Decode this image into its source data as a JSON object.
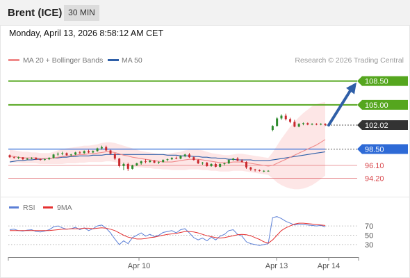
{
  "header": {
    "title": "Brent (ICE)",
    "timeframe": "30 MIN",
    "datetime": "Monday, April 13, 2026 8:58:12 AM CET"
  },
  "legend": {
    "ma20_label": "MA 20 + Bollinger Bands",
    "ma50_label": "MA 50",
    "credit": "Research © 2026 Trading Central",
    "rsi_label": "RSI",
    "rsi_ma_label": "9MA"
  },
  "colors": {
    "ma20": "#f08a8a",
    "ma50": "#2e5fa8",
    "resistance": "#55a61e",
    "pivot": "#2e6ad6",
    "support": "#d8454a",
    "current": "#333333",
    "rsi": "#5b7fd6",
    "rsi_ma": "#e53030",
    "bollinger_fill": "#fde2e2",
    "arrow": "#2f5fa8"
  },
  "price_levels": [
    {
      "value": "108.50",
      "kind": "resistance"
    },
    {
      "value": "105.00",
      "kind": "resistance"
    },
    {
      "value": "102.02",
      "kind": "current"
    },
    {
      "value": "98.50",
      "kind": "pivot"
    },
    {
      "value": "96.10",
      "kind": "support"
    },
    {
      "value": "94.20",
      "kind": "support"
    }
  ],
  "rsi_levels": [
    "70",
    "50",
    "30"
  ],
  "x_axis": [
    "Apr 10",
    "Apr 13",
    "Apr 14"
  ],
  "chart_data": {
    "type": "candlestick",
    "instrument": "Brent (ICE)",
    "interval": "30 MIN",
    "ylim": [
      91.5,
      110.5
    ],
    "candles": [
      [
        97.6,
        97.7,
        97.2,
        97.3
      ],
      [
        97.3,
        97.4,
        97.1,
        97.2
      ],
      [
        97.2,
        97.4,
        97.0,
        97.3
      ],
      [
        97.3,
        97.3,
        96.9,
        97.0
      ],
      [
        97.0,
        97.2,
        96.9,
        97.1
      ],
      [
        97.1,
        97.3,
        97.0,
        97.2
      ],
      [
        97.2,
        97.3,
        96.9,
        97.0
      ],
      [
        97.0,
        97.1,
        96.8,
        96.9
      ],
      [
        96.9,
        97.1,
        96.8,
        97.0
      ],
      [
        97.0,
        97.3,
        96.9,
        97.2
      ],
      [
        97.2,
        97.8,
        97.1,
        97.7
      ],
      [
        97.7,
        98.0,
        97.5,
        97.8
      ],
      [
        97.8,
        98.1,
        97.6,
        97.9
      ],
      [
        97.9,
        98.0,
        97.5,
        97.6
      ],
      [
        97.6,
        97.8,
        97.4,
        97.7
      ],
      [
        97.7,
        98.1,
        97.6,
        98.0
      ],
      [
        98.0,
        98.2,
        97.8,
        97.9
      ],
      [
        97.9,
        98.3,
        97.8,
        98.2
      ],
      [
        98.2,
        98.4,
        97.9,
        98.0
      ],
      [
        98.0,
        98.3,
        97.9,
        98.2
      ],
      [
        98.2,
        98.7,
        98.1,
        98.6
      ],
      [
        98.6,
        99.0,
        98.4,
        98.8
      ],
      [
        98.8,
        99.0,
        98.2,
        98.3
      ],
      [
        98.3,
        98.4,
        97.7,
        97.8
      ],
      [
        97.8,
        97.9,
        96.9,
        97.1
      ],
      [
        97.1,
        97.2,
        95.8,
        96.0
      ],
      [
        96.0,
        96.5,
        95.4,
        96.3
      ],
      [
        96.3,
        96.5,
        95.3,
        95.6
      ],
      [
        95.6,
        96.2,
        95.5,
        96.1
      ],
      [
        96.1,
        96.5,
        96.0,
        96.4
      ],
      [
        96.4,
        96.8,
        96.2,
        96.7
      ],
      [
        96.7,
        97.0,
        96.4,
        96.6
      ],
      [
        96.6,
        96.9,
        96.5,
        96.8
      ],
      [
        96.8,
        96.9,
        96.4,
        96.5
      ],
      [
        96.5,
        96.7,
        96.3,
        96.6
      ],
      [
        96.6,
        97.0,
        96.5,
        96.9
      ],
      [
        96.9,
        97.1,
        96.7,
        97.0
      ],
      [
        97.0,
        97.3,
        96.9,
        97.2
      ],
      [
        97.2,
        97.4,
        97.0,
        97.1
      ],
      [
        97.1,
        97.6,
        97.0,
        97.5
      ],
      [
        97.5,
        97.8,
        97.3,
        97.7
      ],
      [
        97.7,
        97.9,
        97.2,
        97.3
      ],
      [
        97.3,
        97.4,
        96.8,
        96.9
      ],
      [
        96.9,
        97.0,
        96.3,
        96.4
      ],
      [
        96.4,
        96.6,
        96.2,
        96.5
      ],
      [
        96.5,
        96.6,
        95.9,
        96.0
      ],
      [
        96.0,
        96.4,
        95.9,
        96.3
      ],
      [
        96.3,
        96.5,
        95.8,
        95.9
      ],
      [
        95.9,
        96.4,
        95.8,
        96.3
      ],
      [
        96.3,
        96.5,
        96.1,
        96.4
      ],
      [
        96.4,
        97.0,
        96.3,
        96.9
      ],
      [
        96.9,
        97.2,
        96.8,
        97.1
      ],
      [
        97.1,
        97.3,
        96.7,
        96.8
      ],
      [
        96.8,
        97.0,
        96.5,
        96.6
      ],
      [
        96.6,
        96.7,
        95.6,
        95.8
      ],
      [
        95.8,
        95.9,
        95.3,
        95.5
      ],
      [
        95.5,
        95.6,
        95.2,
        95.4
      ],
      [
        95.4,
        95.5,
        95.2,
        95.3
      ],
      [
        95.3,
        95.4,
        95.1,
        95.3
      ],
      [
        95.3,
        95.4,
        95.2,
        95.3
      ],
      [
        101.3,
        102.0,
        101.1,
        101.9
      ],
      [
        101.9,
        103.2,
        101.8,
        103.0
      ],
      [
        103.0,
        103.6,
        102.8,
        103.4
      ],
      [
        103.4,
        103.7,
        102.7,
        102.9
      ],
      [
        102.9,
        103.1,
        102.3,
        102.5
      ],
      [
        102.5,
        102.8,
        101.7,
        101.8
      ],
      [
        101.8,
        102.3,
        101.7,
        102.2
      ],
      [
        102.2,
        102.4,
        102.0,
        102.3
      ],
      [
        102.3,
        102.4,
        102.0,
        102.1
      ],
      [
        102.1,
        102.3,
        102.0,
        102.2
      ],
      [
        102.2,
        102.3,
        102.0,
        102.1
      ],
      [
        102.1,
        102.3,
        102.0,
        102.2
      ],
      [
        102.2,
        102.3,
        101.9,
        102.02
      ]
    ],
    "ma20": [
      97.5,
      97.4,
      97.3,
      97.2,
      97.2,
      97.2,
      97.2,
      97.1,
      97.1,
      97.1,
      97.2,
      97.3,
      97.4,
      97.5,
      97.5,
      97.6,
      97.7,
      97.7,
      97.8,
      97.8,
      97.9,
      98.0,
      98.1,
      98.1,
      98.0,
      97.8,
      97.6,
      97.5,
      97.3,
      97.2,
      97.1,
      97.0,
      96.9,
      96.8,
      96.7,
      96.6,
      96.6,
      96.6,
      96.7,
      96.8,
      96.9,
      97.0,
      97.0,
      97.0,
      96.9,
      96.8,
      96.7,
      96.6,
      96.5,
      96.5,
      96.5,
      96.6,
      96.6,
      96.6,
      96.5,
      96.4,
      96.3,
      96.2,
      96.1,
      96.0,
      96.1,
      96.4,
      96.7,
      97.0,
      97.3,
      97.6,
      97.9,
      98.2,
      98.5,
      98.8,
      99.1,
      99.5,
      99.9
    ],
    "ma50": [
      96.6,
      96.7,
      96.8,
      96.8,
      96.9,
      96.9,
      97.0,
      97.0,
      97.1,
      97.1,
      97.2,
      97.2,
      97.3,
      97.3,
      97.4,
      97.4,
      97.5,
      97.5,
      97.5,
      97.6,
      97.6,
      97.6,
      97.7,
      97.7,
      97.7,
      97.7,
      97.7,
      97.7,
      97.7,
      97.7,
      97.7,
      97.7,
      97.7,
      97.7,
      97.7,
      97.7,
      97.6,
      97.6,
      97.6,
      97.5,
      97.5,
      97.5,
      97.4,
      97.4,
      97.3,
      97.3,
      97.2,
      97.2,
      97.1,
      97.1,
      97.0,
      97.0,
      96.9,
      96.9,
      96.9,
      96.9,
      96.8,
      96.8,
      96.8,
      96.8,
      96.9,
      97.0,
      97.1,
      97.2,
      97.3,
      97.4,
      97.5,
      97.6,
      97.7,
      97.8,
      97.9,
      98.0,
      98.1
    ],
    "bb_upper": [
      98.4,
      98.3,
      98.2,
      98.1,
      98.1,
      98.0,
      98.0,
      97.9,
      97.9,
      97.9,
      98.1,
      98.3,
      98.5,
      98.6,
      98.7,
      98.8,
      98.9,
      99.0,
      99.0,
      99.1,
      99.2,
      99.4,
      99.5,
      99.5,
      99.4,
      99.2,
      99.0,
      98.8,
      98.6,
      98.4,
      98.2,
      98.1,
      98.0,
      97.9,
      97.8,
      97.8,
      97.8,
      97.9,
      98.0,
      98.1,
      98.3,
      98.4,
      98.4,
      98.4,
      98.3,
      98.1,
      97.9,
      97.8,
      97.7,
      97.6,
      97.6,
      97.7,
      97.8,
      97.8,
      97.7,
      97.6,
      97.5,
      97.4,
      97.3,
      97.2,
      98.0,
      99.0,
      100.0,
      100.9,
      101.8,
      102.5,
      103.2,
      103.8,
      104.3,
      104.8,
      105.1,
      105.3,
      105.4
    ],
    "bb_lower": [
      96.5,
      96.5,
      96.5,
      96.4,
      96.4,
      96.4,
      96.4,
      96.3,
      96.3,
      96.3,
      96.3,
      96.3,
      96.3,
      96.4,
      96.4,
      96.4,
      96.5,
      96.5,
      96.6,
      96.6,
      96.6,
      96.6,
      96.7,
      96.7,
      96.6,
      96.4,
      96.2,
      96.0,
      95.9,
      95.8,
      95.8,
      95.7,
      95.7,
      95.6,
      95.6,
      95.5,
      95.5,
      95.4,
      95.4,
      95.4,
      95.4,
      95.5,
      95.5,
      95.5,
      95.4,
      95.4,
      95.3,
      95.3,
      95.2,
      95.2,
      95.2,
      95.3,
      95.3,
      95.3,
      95.2,
      95.1,
      95.0,
      94.9,
      94.8,
      94.7,
      94.2,
      93.6,
      93.2,
      92.9,
      92.7,
      92.6,
      92.6,
      92.7,
      92.9,
      93.2,
      93.6,
      94.1,
      94.6
    ],
    "forecast_arrow": {
      "from": 102.02,
      "to": 108.5
    },
    "rsi": {
      "ylim": [
        0,
        100
      ],
      "rsi": [
        62,
        63,
        60,
        59,
        61,
        62,
        58,
        57,
        59,
        62,
        68,
        70,
        66,
        63,
        64,
        67,
        62,
        66,
        60,
        64,
        70,
        72,
        65,
        55,
        42,
        30,
        38,
        32,
        45,
        50,
        55,
        48,
        52,
        47,
        50,
        56,
        58,
        60,
        55,
        62,
        64,
        55,
        45,
        40,
        44,
        38,
        46,
        40,
        48,
        52,
        60,
        62,
        52,
        48,
        36,
        32,
        30,
        28,
        30,
        32,
        88,
        90,
        86,
        80,
        76,
        72,
        74,
        73,
        72,
        71,
        70,
        71,
        68
      ],
      "rsi_ma": [
        60,
        60,
        60,
        60,
        60,
        60,
        60,
        60,
        60,
        60,
        61,
        62,
        63,
        63,
        64,
        64,
        64,
        65,
        65,
        64,
        65,
        66,
        65,
        63,
        60,
        55,
        50,
        46,
        44,
        42,
        42,
        43,
        45,
        46,
        48,
        50,
        52,
        53,
        54,
        56,
        58,
        58,
        57,
        55,
        52,
        49,
        47,
        45,
        44,
        45,
        47,
        49,
        51,
        52,
        51,
        49,
        45,
        41,
        36,
        33,
        40,
        50,
        60,
        66,
        70,
        74,
        76,
        76,
        75,
        74,
        73,
        72,
        71
      ]
    }
  }
}
